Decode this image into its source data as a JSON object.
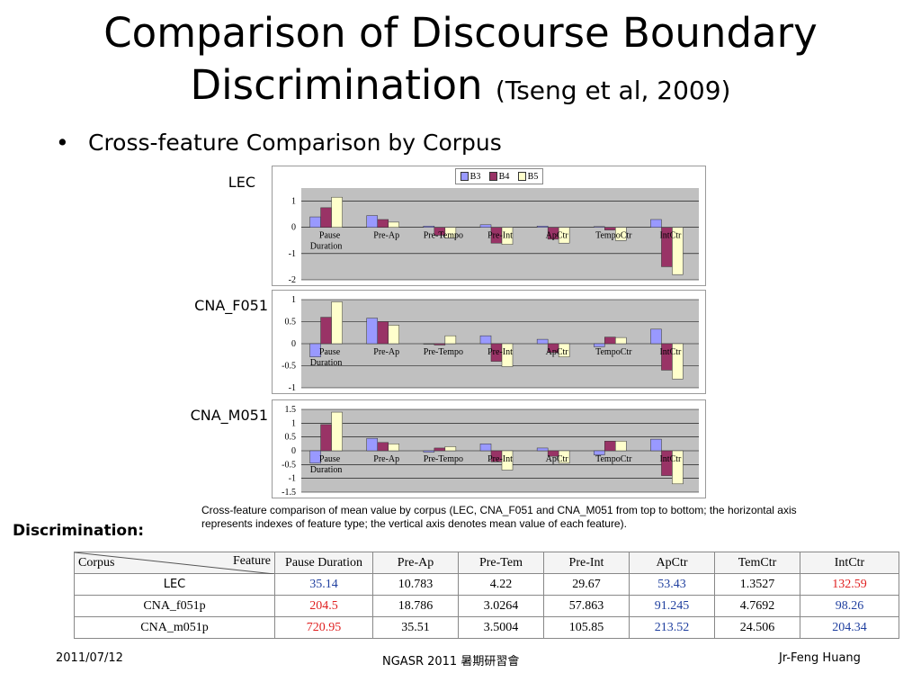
{
  "slide": {
    "title_line1": "Comparison of Discourse Boundary",
    "title_line2": "Discrimination",
    "title_citation": "(Tseng et al, 2009)",
    "bullet": "Cross-feature Comparison by Corpus",
    "caption": "Cross-feature comparison of mean value by corpus (LEC, CNA_F051 and CNA_M051 from top to bottom; the horizontal axis represents indexes of feature type; the vertical axis denotes mean value of each feature).",
    "discrimination_label": "Discrimination:"
  },
  "legend": [
    "B3",
    "B4",
    "B5"
  ],
  "colors": {
    "B3": "#9999ff",
    "B4": "#993366",
    "B5": "#ffffcc",
    "plot_bg": "#c0c0c0",
    "blue": "#1f3f9f",
    "red": "#e02020"
  },
  "chart_data": [
    {
      "type": "bar",
      "label": "LEC",
      "categories": [
        "Pause Duration",
        "Pre-Ap",
        "Pre-Tempo",
        "Pre-Int",
        "ApCtr",
        "TempoCtr",
        "IntCtr"
      ],
      "ylim": [
        -2,
        1.5
      ],
      "yticks": [
        "1",
        "0",
        "-1",
        "-2"
      ],
      "series": [
        {
          "name": "B3",
          "values": [
            0.4,
            0.45,
            0.05,
            0.1,
            0.05,
            0.03,
            0.3
          ]
        },
        {
          "name": "B4",
          "values": [
            0.75,
            0.3,
            -0.3,
            -0.6,
            -0.45,
            -0.1,
            -1.5
          ]
        },
        {
          "name": "B5",
          "values": [
            1.15,
            0.2,
            -0.4,
            -0.65,
            -0.6,
            -0.5,
            -1.8
          ]
        }
      ]
    },
    {
      "type": "bar",
      "label": "CNA_F051",
      "categories": [
        "Pause Duration",
        "Pre-Ap",
        "Pre-Tempo",
        "Pre-Int",
        "ApCtr",
        "TempoCtr",
        "IntCtr"
      ],
      "ylim": [
        -1,
        1
      ],
      "yticks": [
        "1",
        "0.5",
        "0",
        "-0.5",
        "-1"
      ],
      "series": [
        {
          "name": "B3",
          "values": [
            -0.3,
            0.58,
            0.0,
            0.18,
            0.1,
            -0.07,
            0.33
          ]
        },
        {
          "name": "B4",
          "values": [
            0.6,
            0.5,
            -0.03,
            -0.4,
            -0.2,
            0.15,
            -0.6
          ]
        },
        {
          "name": "B5",
          "values": [
            0.95,
            0.42,
            0.18,
            -0.52,
            -0.3,
            0.14,
            -0.8
          ]
        }
      ]
    },
    {
      "type": "bar",
      "label": "CNA_M051",
      "categories": [
        "Pause Duration",
        "Pre-Ap",
        "Pre-Tempo",
        "Pre-Int",
        "ApCtr",
        "TempoCtr",
        "IntCtr"
      ],
      "ylim": [
        -1.5,
        1.5
      ],
      "yticks": [
        "1.5",
        "1",
        "0.5",
        "0",
        "-0.5",
        "-1",
        "-1.5"
      ],
      "series": [
        {
          "name": "B3",
          "values": [
            -0.45,
            0.45,
            -0.05,
            0.25,
            0.1,
            -0.15,
            0.42
          ]
        },
        {
          "name": "B4",
          "values": [
            0.95,
            0.3,
            0.1,
            -0.4,
            -0.2,
            0.35,
            -0.9
          ]
        },
        {
          "name": "B5",
          "values": [
            1.4,
            0.25,
            0.15,
            -0.7,
            -0.45,
            0.35,
            -1.2
          ]
        }
      ]
    }
  ],
  "table": {
    "corner_left": "Corpus",
    "corner_right": "Feature",
    "headers": [
      "Pause Duration",
      "Pre-Ap",
      "Pre-Tem",
      "Pre-Int",
      "ApCtr",
      "TemCtr",
      "IntCtr"
    ],
    "rows": [
      {
        "corpus": "LEC",
        "cells": [
          "35.14",
          "10.783",
          "4.22",
          "29.67",
          "53.43",
          "1.3527",
          "132.59"
        ]
      },
      {
        "corpus": "CNA_f051p",
        "cells": [
          "204.5",
          "18.786",
          "3.0264",
          "57.863",
          "91.245",
          "4.7692",
          "98.26"
        ]
      },
      {
        "corpus": "CNA_m051p",
        "cells": [
          "720.95",
          "35.51",
          "3.5004",
          "105.85",
          "213.52",
          "24.506",
          "204.34"
        ]
      }
    ]
  },
  "footer": {
    "date": "2011/07/12",
    "center": "NGASR 2011 暑期研習會",
    "author": "Jr-Feng Huang"
  }
}
